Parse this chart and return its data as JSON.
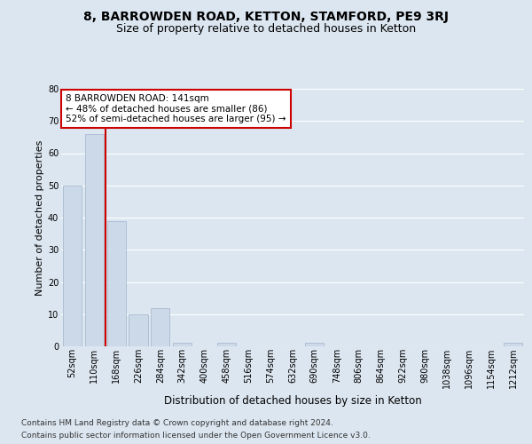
{
  "title1": "8, BARROWDEN ROAD, KETTON, STAMFORD, PE9 3RJ",
  "title2": "Size of property relative to detached houses in Ketton",
  "xlabel": "Distribution of detached houses by size in Ketton",
  "ylabel": "Number of detached properties",
  "categories": [
    "52sqm",
    "110sqm",
    "168sqm",
    "226sqm",
    "284sqm",
    "342sqm",
    "400sqm",
    "458sqm",
    "516sqm",
    "574sqm",
    "632sqm",
    "690sqm",
    "748sqm",
    "806sqm",
    "864sqm",
    "922sqm",
    "980sqm",
    "1038sqm",
    "1096sqm",
    "1154sqm",
    "1212sqm"
  ],
  "values": [
    50,
    66,
    39,
    10,
    12,
    1,
    0,
    1,
    0,
    0,
    0,
    1,
    0,
    0,
    0,
    0,
    0,
    0,
    0,
    0,
    1
  ],
  "bar_color": "#ccd9e8",
  "bar_edge_color": "#aabbd0",
  "vline_x": 1.5,
  "vline_color": "#cc0000",
  "annotation_text": "8 BARROWDEN ROAD: 141sqm\n← 48% of detached houses are smaller (86)\n52% of semi-detached houses are larger (95) →",
  "annotation_box_color": "#cc0000",
  "ylim": [
    0,
    80
  ],
  "yticks": [
    0,
    10,
    20,
    30,
    40,
    50,
    60,
    70,
    80
  ],
  "background_color": "#dce6f0",
  "plot_bg_color": "#dce6f0",
  "grid_color": "#ffffff",
  "footer1": "Contains HM Land Registry data © Crown copyright and database right 2024.",
  "footer2": "Contains public sector information licensed under the Open Government Licence v3.0.",
  "title1_fontsize": 10,
  "title2_fontsize": 9,
  "xlabel_fontsize": 8.5,
  "ylabel_fontsize": 8,
  "tick_fontsize": 7,
  "footer_fontsize": 6.5,
  "ann_fontsize": 7.5
}
